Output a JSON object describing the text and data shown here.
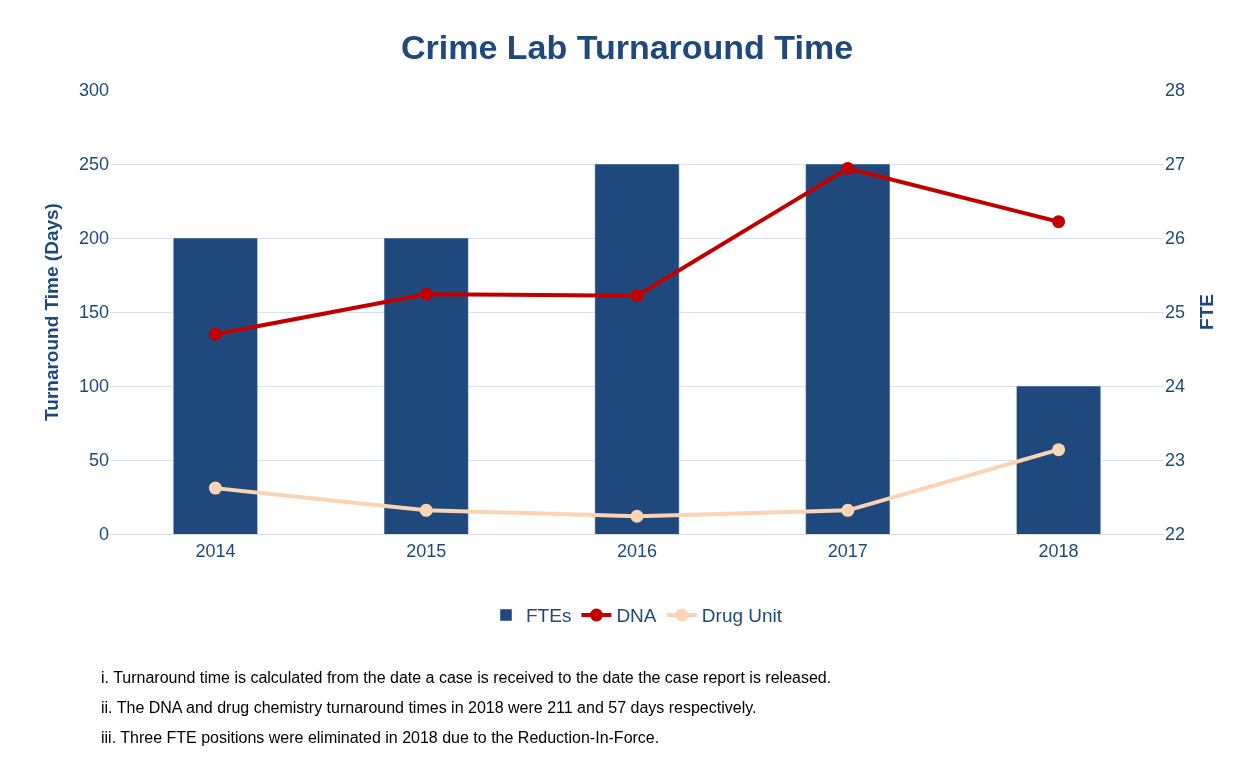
{
  "chart_data": {
    "type": "bar",
    "title": "Crime Lab Turnaround Time",
    "categories": [
      "2014",
      "2015",
      "2016",
      "2017",
      "2018"
    ],
    "series": [
      {
        "name": "FTEs",
        "axis": "y2",
        "color": "#1f497d",
        "values": [
          26,
          26,
          27,
          27,
          24
        ]
      },
      {
        "name": "DNA",
        "type": "line",
        "color": "#c00000",
        "values": [
          135,
          162,
          161,
          247,
          211
        ]
      },
      {
        "name": "Drug Unit",
        "type": "line",
        "color": "#fad4b4",
        "values": [
          31,
          16,
          12,
          16,
          57
        ]
      }
    ],
    "ylabel": "Turnaround Time (Days)",
    "y2label": "FTE",
    "ylim": [
      0,
      300
    ],
    "yticks": [
      0,
      50,
      100,
      150,
      200,
      250,
      300
    ],
    "y2lim": [
      22,
      28
    ],
    "y2ticks": [
      22,
      23,
      24,
      25,
      26,
      27,
      28
    ],
    "grid": "y",
    "legend": "bottom",
    "marker": "circle",
    "line_style": "solid",
    "annotations": [
      "i. Turnaround time is calculated from the date a case is received to the date the case report is released.",
      "ii. The DNA and drug chemistry turnaround times in 2018 were 211 and 57 days respectively.",
      "iii. Three FTE positions were eliminated in 2018 due to the Reduction-In-Force."
    ]
  }
}
